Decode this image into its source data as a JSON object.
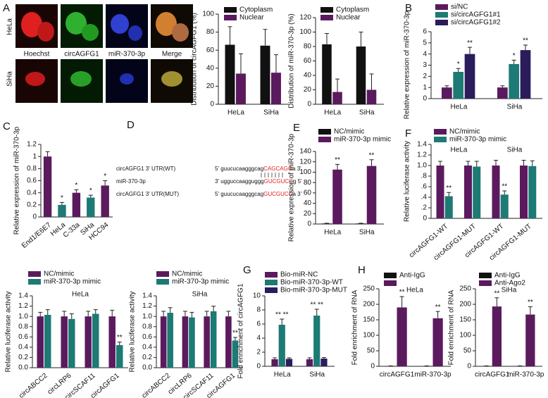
{
  "microscopy": {
    "panel": "A",
    "rows": [
      "HeLa",
      "SiHa"
    ],
    "columns": [
      "Hoechst",
      "circAGFG1",
      "miR-370-3p",
      "Merge"
    ]
  },
  "sequence_diagram": {
    "panel": "D",
    "lines": [
      {
        "name": "circAGFG1 3' UTR(WT)",
        "left": "5' guucucaagggcag",
        "site": "CAGCAGG",
        "right": "a 3'"
      },
      {
        "name": "miR-370-3p",
        "left": "3' ugguccaagguggg",
        "site": "GUCGUCC",
        "right": "g 5'"
      },
      {
        "name": "circAGFG1 3' UTR(MUT)",
        "left": "5' guucucaagggcag",
        "site": "GUCGUCC",
        "right": "a 3'"
      }
    ]
  },
  "chart_data": [
    {
      "type": "bar",
      "ylabel": "Distribution of circAGFG1 (%)",
      "categories": [
        "HeLa",
        "SiHa"
      ],
      "series": [
        {
          "name": "Cytoplasm",
          "color": "#111111",
          "values": [
            66,
            65
          ],
          "errors": [
            20,
            18
          ]
        },
        {
          "name": "Nuclear",
          "color": "#5b1a5e",
          "values": [
            34,
            35
          ],
          "errors": [
            22,
            20
          ]
        }
      ],
      "ylim": [
        0,
        100
      ],
      "yticks": [
        0,
        20,
        40,
        60,
        80,
        100
      ]
    },
    {
      "type": "bar",
      "ylabel": "Distribution of miR-370-3p (%)",
      "categories": [
        "HeLa",
        "SiHa"
      ],
      "series": [
        {
          "name": "Cytoplasm",
          "color": "#111111",
          "values": [
            83,
            80
          ],
          "errors": [
            15,
            20
          ]
        },
        {
          "name": "Nuclear",
          "color": "#5b1a5e",
          "values": [
            17,
            20
          ],
          "errors": [
            18,
            22
          ]
        }
      ],
      "ylim": [
        0,
        120
      ],
      "yticks": [
        0,
        20,
        40,
        60,
        80,
        100,
        120
      ]
    },
    {
      "type": "bar",
      "panel": "B",
      "ylabel": "Relative expression of miR-370-3p",
      "categories": [
        "HeLa",
        "SiHa"
      ],
      "series": [
        {
          "name": "si/NC",
          "color": "#5b1a5e",
          "values": [
            1,
            1
          ],
          "errors": [
            0.15,
            0.15
          ],
          "sig": [
            null,
            null
          ]
        },
        {
          "name": "si/circAGFG1#1",
          "color": "#1d7a74",
          "values": [
            2.4,
            3.1
          ],
          "errors": [
            0.3,
            0.35
          ],
          "sig": [
            "*",
            "*"
          ]
        },
        {
          "name": "si/circAGFG1#2",
          "color": "#2b1c5c",
          "values": [
            4.0,
            4.35
          ],
          "errors": [
            0.6,
            0.45
          ],
          "sig": [
            "**",
            "**"
          ]
        }
      ],
      "ylim": [
        0,
        6
      ],
      "yticks": [
        0,
        1,
        2,
        3,
        4,
        5,
        6
      ]
    },
    {
      "type": "bar",
      "panel": "C",
      "ylabel": "Relative expression of miR-370-3p",
      "categories": [
        "End1/E6E7",
        "HeLa",
        "C-33a",
        "SiHa",
        "HCC94"
      ],
      "values": [
        1.0,
        0.2,
        0.4,
        0.32,
        0.52
      ],
      "errors": [
        0.08,
        0.04,
        0.05,
        0.04,
        0.08
      ],
      "sig": [
        null,
        "*",
        "*",
        "*",
        "*"
      ],
      "colors": [
        "#5b1a5e",
        "#1d7a74",
        "#5b1a5e",
        "#1d7a74",
        "#5b1a5e"
      ],
      "ylim": [
        0,
        1.2
      ],
      "yticks": [
        0,
        0.2,
        0.4,
        0.6,
        0.8,
        1,
        1.2
      ]
    },
    {
      "type": "bar",
      "panel": "E",
      "ylabel": "Relative expression of miR-370-3p",
      "categories": [
        "HeLa",
        "SiHa"
      ],
      "series": [
        {
          "name": "NC/mimic",
          "color": "#111111",
          "values": [
            1,
            1
          ],
          "errors": [
            0.5,
            0.5
          ],
          "sig": [
            null,
            null
          ]
        },
        {
          "name": "miR-370-3p mimic",
          "color": "#5b1a5e",
          "values": [
            105,
            112
          ],
          "errors": [
            10,
            12
          ],
          "sig": [
            "**",
            "**"
          ]
        }
      ],
      "ylim": [
        0,
        140
      ],
      "yticks": [
        0,
        20,
        40,
        60,
        80,
        100,
        120,
        140
      ]
    },
    {
      "type": "bar",
      "panel": "F",
      "ylabel": "Relative luciferase activity",
      "categories": [
        "circAGFG1-WT",
        "circAGFG1-MUT",
        "circAGFG1-WT",
        "circAGFG1-MUT"
      ],
      "groups": [
        "HeLa",
        "SiHa"
      ],
      "series": [
        {
          "name": "NC/mimic",
          "color": "#5b1a5e",
          "values": [
            1.0,
            1.0,
            1.0,
            1.0
          ],
          "errors": [
            0.08,
            0.08,
            0.1,
            0.1
          ],
          "sig": [
            null,
            null,
            null,
            null
          ]
        },
        {
          "name": "miR-370-3p mimic",
          "color": "#1d7a74",
          "values": [
            0.42,
            0.98,
            0.45,
            0.99
          ],
          "errors": [
            0.07,
            0.1,
            0.07,
            0.1
          ],
          "sig": [
            "**",
            null,
            "**",
            null
          ]
        }
      ],
      "ylim": [
        0,
        1.4
      ],
      "yticks": [
        0,
        {
          "value": 0.2,
          "label": ".2"
        },
        {
          "value": 0.4,
          "label": ".4"
        },
        {
          "value": 0.6,
          "label": ".6"
        },
        {
          "value": 0.8,
          "label": ".8"
        },
        {
          "value": 1,
          "label": "1.0"
        },
        1.2,
        1.4
      ]
    },
    {
      "type": "bar",
      "subtitle": "HeLa",
      "ylabel": "Relative luciferase activity",
      "categories": [
        "circABCC2",
        "circLRP6",
        "circSCAF11",
        "circAGFG1"
      ],
      "series": [
        {
          "name": "NC/mimic",
          "color": "#5b1a5e",
          "values": [
            1.0,
            1.0,
            1.0,
            1.0
          ],
          "errors": [
            0.08,
            0.1,
            0.1,
            0.12
          ],
          "sig": [
            null,
            null,
            null,
            null
          ]
        },
        {
          "name": "miR-370-3p mimic",
          "color": "#1d7a74",
          "values": [
            1.03,
            0.95,
            1.05,
            0.44
          ],
          "errors": [
            0.1,
            0.1,
            0.08,
            0.06
          ],
          "sig": [
            null,
            null,
            null,
            "**"
          ]
        }
      ],
      "ylim": [
        0,
        1.4
      ],
      "yticks": [
        {
          "value": 0,
          "label": "0.0"
        },
        0.2,
        0.4,
        0.6,
        0.8,
        {
          "value": 1,
          "label": "1.0"
        },
        1.2,
        1.4
      ]
    },
    {
      "type": "bar",
      "subtitle": "SiHa",
      "ylabel": "Relative luciferase activity",
      "categories": [
        "circABCC2",
        "circLRP6",
        "circSCAF11",
        "circAGFG1"
      ],
      "series": [
        {
          "name": "NC/mimic",
          "color": "#5b1a5e",
          "values": [
            1.0,
            1.0,
            1.0,
            1.0
          ],
          "errors": [
            0.1,
            0.1,
            0.1,
            0.1
          ],
          "sig": [
            null,
            null,
            null,
            null
          ]
        },
        {
          "name": "miR-370-3p mimic",
          "color": "#1d7a74",
          "values": [
            1.07,
            0.98,
            1.1,
            0.53
          ],
          "errors": [
            0.1,
            0.1,
            0.1,
            0.06
          ],
          "sig": [
            null,
            null,
            null,
            "**"
          ]
        }
      ],
      "ylim": [
        0,
        1.4
      ],
      "yticks": [
        {
          "value": 0,
          "label": "0.0"
        },
        0.2,
        0.4,
        0.6,
        0.8,
        {
          "value": 1,
          "label": "1.0"
        },
        1.2,
        1.4
      ]
    },
    {
      "type": "bar",
      "panel": "G",
      "ylabel": "Fold enrichment of circAGFG1",
      "categories": [
        "HeLa",
        "SiHa"
      ],
      "series": [
        {
          "name": "Bio-miR-NC",
          "color": "#5b1a5e",
          "values": [
            1,
            1
          ],
          "errors": [
            0.2,
            0.2
          ],
          "sig": [
            null,
            null
          ]
        },
        {
          "name": "Bio-miR-370-3p-WT",
          "color": "#1d7a74",
          "values": [
            5.9,
            7.2
          ],
          "errors": [
            0.8,
            0.9
          ],
          "sig": [
            "** **",
            "** **"
          ]
        },
        {
          "name": "Bio-miR-370-3p-MUT",
          "color": "#2b1c5c",
          "values": [
            1.05,
            1.1
          ],
          "errors": [
            0.15,
            0.15
          ],
          "sig": [
            null,
            null
          ]
        }
      ],
      "ylim": [
        0,
        10
      ],
      "yticks": [
        0,
        2,
        4,
        6,
        8,
        10
      ]
    },
    {
      "type": "bar",
      "panel": "H",
      "subtitle": "HeLa",
      "ylabel": "Fold enrichment of RNA",
      "categories": [
        "circAGFG1",
        "miR-370-3p"
      ],
      "series": [
        {
          "name": "Anti-IgG",
          "color": "#111111",
          "values": [
            1,
            1
          ],
          "errors": [
            0.5,
            0.5
          ],
          "sig": [
            null,
            null
          ]
        },
        {
          "name": null,
          "color": "#5b1a5e",
          "values": [
            190,
            155
          ],
          "errors": [
            35,
            22
          ],
          "sig": [
            "**",
            "**"
          ]
        }
      ],
      "ylim": [
        0,
        250
      ],
      "yticks": [
        0,
        50,
        100,
        150,
        200,
        250
      ]
    },
    {
      "type": "bar",
      "subtitle": "SiHa",
      "ylabel": "Fold enrichment of RNA",
      "categories": [
        "circAGFG1",
        "miR-370-3p"
      ],
      "series": [
        {
          "name": "Anti-IgG",
          "color": "#111111",
          "values": [
            1,
            1
          ],
          "errors": [
            0.5,
            0.5
          ],
          "sig": [
            null,
            null
          ]
        },
        {
          "name": "Anti-Ago2",
          "color": "#5b1a5e",
          "values": [
            193,
            167
          ],
          "errors": [
            28,
            25
          ],
          "sig": [
            "**",
            "**"
          ]
        }
      ],
      "ylim": [
        0,
        250
      ],
      "yticks": [
        0,
        50,
        100,
        150,
        200,
        250
      ]
    }
  ]
}
